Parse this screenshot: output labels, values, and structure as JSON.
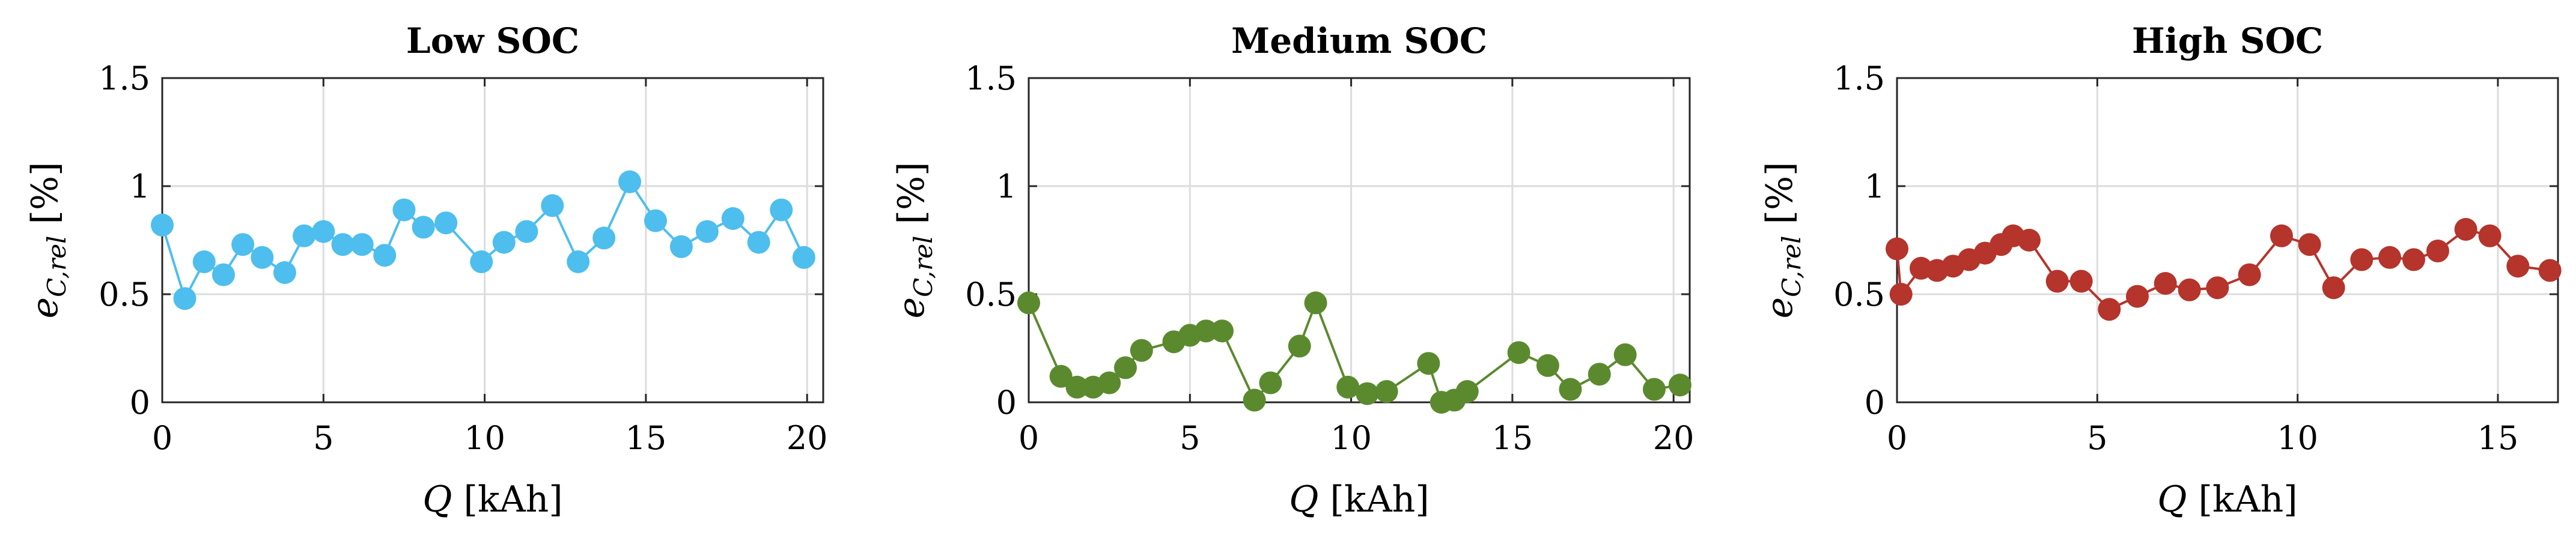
{
  "chart_data": [
    {
      "type": "line",
      "title": "Low SOC",
      "xlabel": {
        "symbol": "Q",
        "unit": " [kAh]"
      },
      "ylabel": {
        "main": "e",
        "sub": "C,rel",
        "unit": " [%]"
      },
      "xlim": [
        0,
        20.5
      ],
      "ylim": [
        0,
        1.5
      ],
      "xticks": [
        0,
        5,
        10,
        15,
        20
      ],
      "xtick_labels": [
        "0",
        "5",
        "10",
        "15",
        "20"
      ],
      "yticks": [
        0,
        0.5,
        1,
        1.5
      ],
      "ytick_labels": [
        "0",
        "0.5",
        "1",
        "1.5"
      ],
      "grid": true,
      "color": "#4DBEEE",
      "series": [
        {
          "x": [
            0,
            0.7,
            1.3,
            1.9,
            2.5,
            3.1,
            3.8,
            4.4,
            5.0,
            5.6,
            6.2,
            6.9,
            7.5,
            8.1,
            8.8,
            9.9,
            10.6,
            11.3,
            12.1,
            12.9,
            13.7,
            14.5,
            15.3,
            16.1,
            16.9,
            17.7,
            18.5,
            19.2,
            19.9
          ],
          "y": [
            0.82,
            0.48,
            0.65,
            0.59,
            0.73,
            0.67,
            0.6,
            0.77,
            0.79,
            0.73,
            0.73,
            0.68,
            0.89,
            0.81,
            0.83,
            0.65,
            0.74,
            0.79,
            0.91,
            0.65,
            0.76,
            1.02,
            0.84,
            0.72,
            0.79,
            0.85,
            0.74,
            0.89,
            0.67
          ]
        }
      ]
    },
    {
      "type": "line",
      "title": "Medium SOC",
      "xlabel": {
        "symbol": "Q",
        "unit": " [kAh]"
      },
      "ylabel": {
        "main": "e",
        "sub": "C,rel",
        "unit": " [%]"
      },
      "xlim": [
        0,
        20.5
      ],
      "ylim": [
        0,
        1.5
      ],
      "xticks": [
        0,
        5,
        10,
        15,
        20
      ],
      "xtick_labels": [
        "0",
        "5",
        "10",
        "15",
        "20"
      ],
      "yticks": [
        0,
        0.5,
        1,
        1.5
      ],
      "ytick_labels": [
        "0",
        "0.5",
        "1",
        "1.5"
      ],
      "grid": true,
      "color": "#5B8A2E",
      "series": [
        {
          "x": [
            0,
            1.0,
            1.5,
            2.0,
            2.5,
            3.0,
            3.5,
            4.5,
            5.0,
            5.5,
            6.0,
            7.0,
            7.5,
            8.4,
            8.9,
            9.9,
            10.5,
            11.1,
            12.4,
            12.8,
            13.2,
            13.6,
            15.2,
            16.1,
            16.8,
            17.7,
            18.5,
            19.4,
            20.2
          ],
          "y": [
            0.46,
            0.12,
            0.07,
            0.07,
            0.09,
            0.16,
            0.24,
            0.28,
            0.31,
            0.33,
            0.33,
            0.01,
            0.09,
            0.26,
            0.46,
            0.07,
            0.04,
            0.05,
            0.18,
            0.0,
            0.01,
            0.05,
            0.23,
            0.17,
            0.06,
            0.13,
            0.22,
            0.06,
            0.08
          ]
        }
      ]
    },
    {
      "type": "line",
      "title": "High SOC",
      "xlabel": {
        "symbol": "Q",
        "unit": " [kAh]"
      },
      "ylabel": {
        "main": "e",
        "sub": "C,rel",
        "unit": " [%]"
      },
      "xlim": [
        0,
        16.5
      ],
      "ylim": [
        0,
        1.5
      ],
      "xticks": [
        0,
        5,
        10,
        15
      ],
      "xtick_labels": [
        "0",
        "5",
        "10",
        "15"
      ],
      "yticks": [
        0,
        0.5,
        1,
        1.5
      ],
      "ytick_labels": [
        "0",
        "0.5",
        "1",
        "1.5"
      ],
      "grid": true,
      "color": "#B5342B",
      "series": [
        {
          "x": [
            0,
            0.1,
            0.6,
            1.0,
            1.4,
            1.8,
            2.2,
            2.6,
            2.9,
            3.3,
            4.0,
            4.6,
            5.3,
            6.0,
            6.7,
            7.3,
            8.0,
            8.8,
            9.6,
            10.3,
            10.9,
            11.6,
            12.3,
            12.9,
            13.5,
            14.2,
            14.8,
            15.5,
            16.3
          ],
          "y": [
            0.71,
            0.5,
            0.62,
            0.61,
            0.63,
            0.66,
            0.69,
            0.73,
            0.77,
            0.75,
            0.56,
            0.56,
            0.43,
            0.49,
            0.55,
            0.52,
            0.53,
            0.59,
            0.77,
            0.73,
            0.53,
            0.66,
            0.67,
            0.66,
            0.7,
            0.8,
            0.77,
            0.63,
            0.61
          ]
        }
      ]
    }
  ]
}
